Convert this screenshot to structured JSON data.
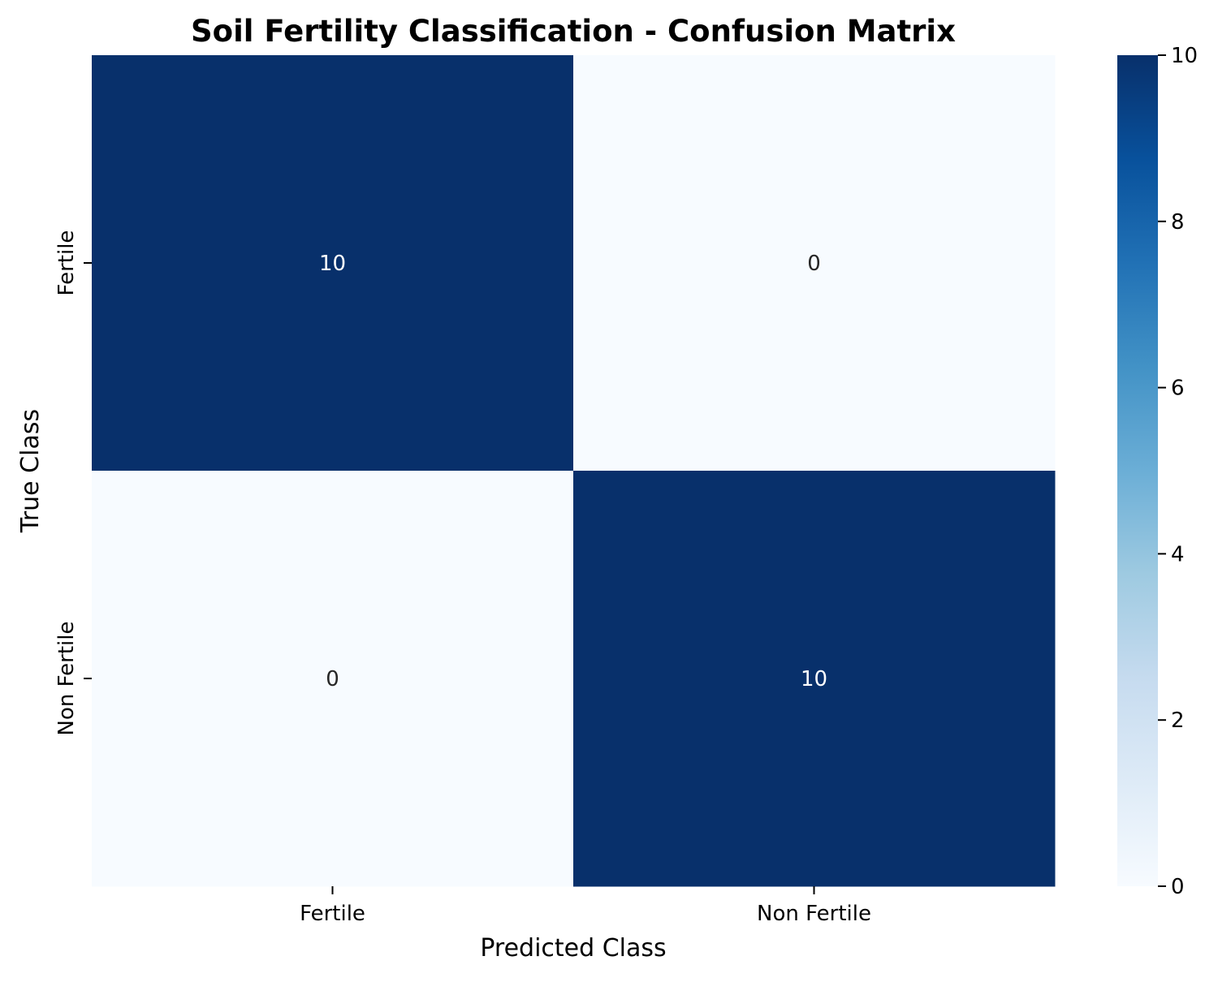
{
  "chart_data": {
    "type": "heatmap",
    "title": "Soil Fertility Classification - Confusion Matrix",
    "xlabel": "Predicted Class",
    "ylabel": "True Class",
    "x_categories": [
      "Fertile",
      "Non Fertile"
    ],
    "y_categories": [
      "Fertile",
      "Non Fertile"
    ],
    "values": [
      [
        10,
        0
      ],
      [
        0,
        10
      ]
    ],
    "annotations": [
      [
        "10",
        "0"
      ],
      [
        "0",
        "10"
      ]
    ],
    "colormap": "Blues",
    "colorbar": {
      "range": [
        0,
        10
      ],
      "ticks": [
        "0",
        "2",
        "4",
        "6",
        "8",
        "10"
      ]
    },
    "colors": {
      "low": "#f7fbff",
      "high": "#08306b",
      "annotation_dark_bg": "#ffffff",
      "annotation_light_bg": "#262626"
    }
  }
}
